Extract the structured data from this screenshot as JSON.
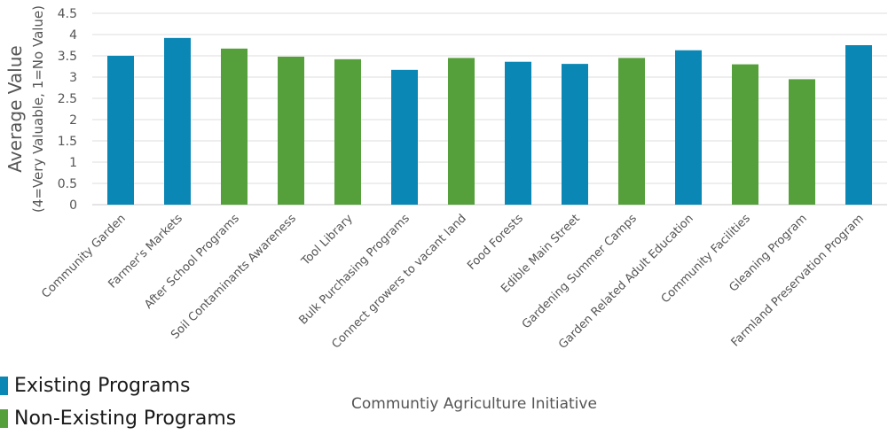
{
  "chart_data": {
    "type": "bar",
    "title": "",
    "xlabel": "Communtiy Agriculture Initiative",
    "ylabel": "Average Value",
    "ylabel_sub": "(4=Very Valuable, 1=No Value)",
    "ylim": [
      0,
      4.5
    ],
    "yticks": [
      "0",
      "0.5",
      "1",
      "1.5",
      "2",
      "2.5",
      "3",
      "3.5",
      "4",
      "4.5"
    ],
    "grid": true,
    "legend_position": "bottom-left",
    "categories": [
      "Community Garden",
      "Farmer's Markets",
      "After School Programs",
      "Soil Contaminants Awareness",
      "Tool Library",
      "Bulk Purchasing Programs",
      "Connect growers to vacant land",
      "Food Forests",
      "Edible Main Street",
      "Gardening Summer Camps",
      "Garden Related Adult Education",
      "Community Facilities",
      "Gleaning Program",
      "Farmland Preservation Program"
    ],
    "values": [
      3.5,
      3.92,
      3.67,
      3.48,
      3.42,
      3.17,
      3.45,
      3.36,
      3.31,
      3.45,
      3.63,
      3.3,
      2.95,
      3.75
    ],
    "groups": [
      "existing",
      "existing",
      "non",
      "non",
      "non",
      "existing",
      "non",
      "existing",
      "existing",
      "non",
      "existing",
      "non",
      "non",
      "existing"
    ],
    "series": [
      {
        "key": "existing",
        "name": "Existing Programs",
        "color": "#0a87b5"
      },
      {
        "key": "non",
        "name": "Non-Existing Programs",
        "color": "#56a03c"
      }
    ]
  }
}
